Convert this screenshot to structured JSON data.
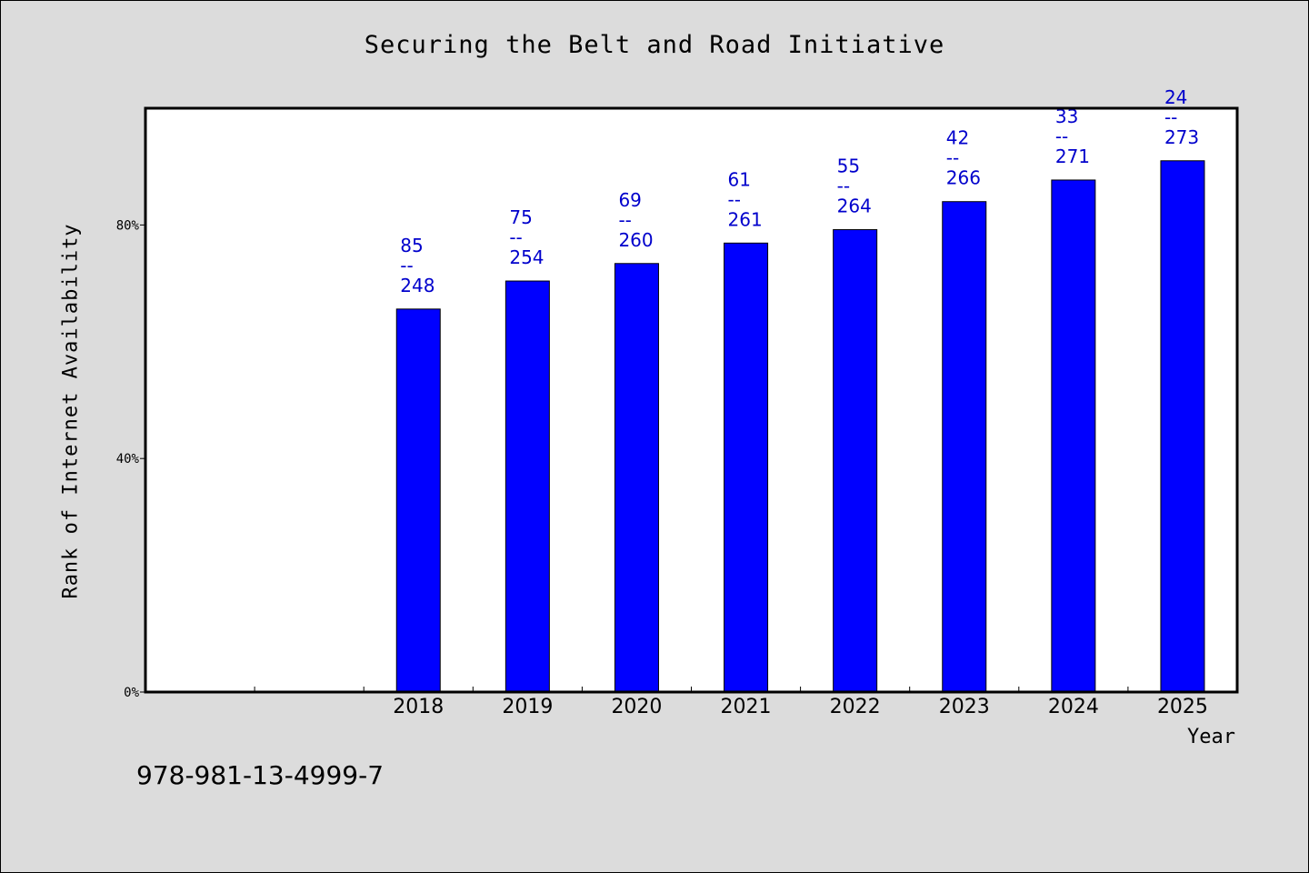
{
  "chart_data": {
    "type": "bar",
    "title": "Securing the Belt and Road Initiative",
    "xlabel": "Year",
    "ylabel": "Rank of Internet Availability",
    "categories": [
      "",
      "",
      "2018",
      "2019",
      "2020",
      "2021",
      "2022",
      "2023",
      "2024",
      "2025"
    ],
    "values": [
      null,
      null,
      65.6,
      70.4,
      73.4,
      76.9,
      79.2,
      84.0,
      87.7,
      91.0
    ],
    "data_labels": [
      null,
      null,
      [
        "85",
        "--",
        "248"
      ],
      [
        "75",
        "--",
        "254"
      ],
      [
        "69",
        "--",
        "260"
      ],
      [
        "61",
        "--",
        "261"
      ],
      [
        "55",
        "--",
        "264"
      ],
      [
        "42",
        "--",
        "266"
      ],
      [
        "33",
        "--",
        "271"
      ],
      [
        "24",
        "--",
        "273"
      ]
    ],
    "ylim": [
      0,
      100
    ],
    "yticks": [
      0,
      40,
      80
    ],
    "ytick_labels": [
      "0%",
      "40%",
      "80%"
    ],
    "grid": false,
    "legend": "none",
    "bar_color": "#0000ff",
    "label_color": "#0000cc",
    "background": "#dcdcdc",
    "plot_background": "#ffffff"
  },
  "footer": {
    "isbn": "978-981-13-4999-7"
  }
}
